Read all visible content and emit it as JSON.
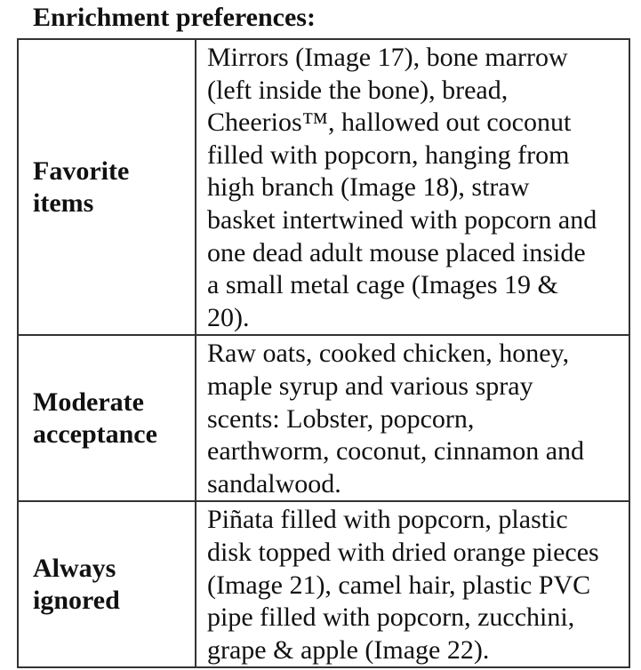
{
  "title": "Enrichment preferences:",
  "rows": [
    {
      "label": [
        "Favorite",
        "items"
      ],
      "lines": [
        "Mirrors (Image 17), bone marrow",
        "(left inside the bone), bread,",
        "Cheerios™, hallowed out coconut",
        "filled with popcorn, hanging from",
        "high branch (Image 18), straw",
        "basket intertwined with popcorn and",
        "one dead adult mouse placed inside",
        "a small metal cage (Images 19 &",
        "20)."
      ]
    },
    {
      "label": [
        "Moderate",
        "acceptance"
      ],
      "lines": [
        "Raw oats, cooked chicken, honey,",
        "maple syrup and various spray",
        "scents:  Lobster, popcorn,",
        "earthworm, coconut, cinnamon and",
        "sandalwood."
      ]
    },
    {
      "label": [
        "Always",
        "ignored"
      ],
      "lines": [
        "Piñata filled with popcorn, plastic",
        "disk topped with dried orange pieces",
        "(Image 21), camel hair, plastic PVC",
        "pipe filled with popcorn, zucchini,",
        "grape & apple (Image 22)."
      ]
    }
  ]
}
